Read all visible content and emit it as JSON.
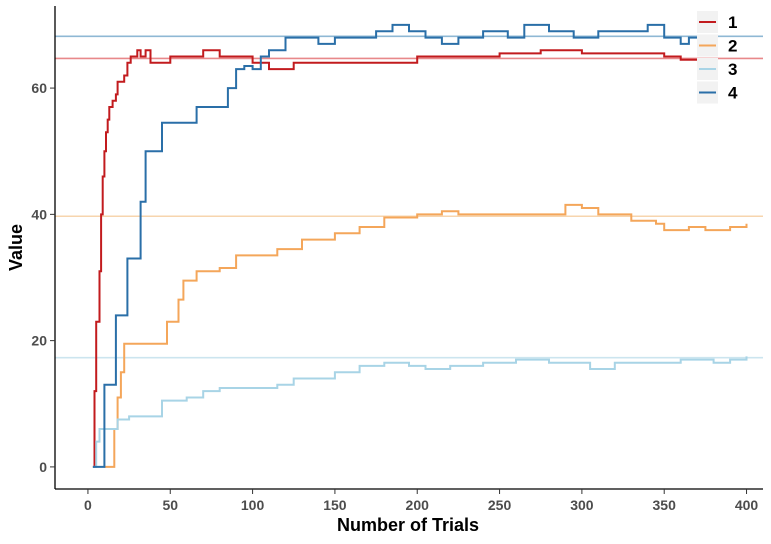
{
  "chart_data": {
    "type": "line",
    "xlabel": "Number of Trials",
    "ylabel": "Value",
    "xlim": [
      -20,
      410
    ],
    "ylim": [
      -3.5,
      73
    ],
    "x_ticks": [
      0,
      50,
      100,
      150,
      200,
      250,
      300,
      350,
      400
    ],
    "y_ticks": [
      0,
      20,
      40,
      60
    ],
    "grid": false,
    "legend_position": "top-right",
    "series": [
      {
        "name": "1",
        "color": "#c21b1e",
        "reference_value": 64.7,
        "reference_color": "#e8888a",
        "points": [
          [
            3,
            0
          ],
          [
            4,
            12
          ],
          [
            5,
            23
          ],
          [
            7,
            31
          ],
          [
            8,
            40
          ],
          [
            9,
            46
          ],
          [
            10,
            50
          ],
          [
            11,
            53
          ],
          [
            12,
            55
          ],
          [
            13,
            57
          ],
          [
            15,
            58
          ],
          [
            17,
            59
          ],
          [
            18,
            61
          ],
          [
            22,
            62
          ],
          [
            24,
            64
          ],
          [
            26,
            65
          ],
          [
            30,
            66
          ],
          [
            32,
            65
          ],
          [
            35,
            66
          ],
          [
            38,
            64
          ],
          [
            45,
            64
          ],
          [
            50,
            65
          ],
          [
            60,
            65
          ],
          [
            70,
            66
          ],
          [
            80,
            65
          ],
          [
            90,
            65
          ],
          [
            100,
            64
          ],
          [
            110,
            63
          ],
          [
            125,
            64
          ],
          [
            150,
            64
          ],
          [
            175,
            64
          ],
          [
            200,
            65
          ],
          [
            225,
            65
          ],
          [
            250,
            65.5
          ],
          [
            275,
            66
          ],
          [
            300,
            65.5
          ],
          [
            325,
            65.5
          ],
          [
            350,
            65
          ],
          [
            360,
            64.5
          ],
          [
            372,
            64.7
          ]
        ]
      },
      {
        "name": "2",
        "color": "#f4a65a",
        "reference_value": 39.7,
        "reference_color": "#f7d5ae",
        "points": [
          [
            10,
            0
          ],
          [
            15,
            0
          ],
          [
            16,
            6
          ],
          [
            18,
            11
          ],
          [
            20,
            15
          ],
          [
            22,
            19.5
          ],
          [
            25,
            19.5
          ],
          [
            30,
            19.5
          ],
          [
            35,
            19.5
          ],
          [
            40,
            19.5
          ],
          [
            48,
            23
          ],
          [
            55,
            26.5
          ],
          [
            58,
            29.5
          ],
          [
            66,
            31
          ],
          [
            80,
            31.5
          ],
          [
            90,
            33.5
          ],
          [
            100,
            33.5
          ],
          [
            115,
            34.5
          ],
          [
            130,
            36
          ],
          [
            150,
            37
          ],
          [
            165,
            38
          ],
          [
            180,
            39.5
          ],
          [
            200,
            40
          ],
          [
            215,
            40.5
          ],
          [
            225,
            40
          ],
          [
            250,
            40
          ],
          [
            270,
            40
          ],
          [
            290,
            41.5
          ],
          [
            300,
            41
          ],
          [
            310,
            40
          ],
          [
            330,
            39
          ],
          [
            345,
            38.5
          ],
          [
            350,
            37.5
          ],
          [
            365,
            38
          ],
          [
            375,
            37.5
          ],
          [
            390,
            38
          ],
          [
            400,
            38.5
          ]
        ]
      },
      {
        "name": "3",
        "color": "#a8d4e6",
        "reference_value": 17.3,
        "reference_color": "#cce5ef",
        "points": [
          [
            3,
            0
          ],
          [
            5,
            4
          ],
          [
            7,
            6
          ],
          [
            12,
            6
          ],
          [
            18,
            7.5
          ],
          [
            25,
            8
          ],
          [
            30,
            8
          ],
          [
            40,
            8
          ],
          [
            45,
            10.5
          ],
          [
            50,
            10.5
          ],
          [
            60,
            11
          ],
          [
            70,
            12
          ],
          [
            80,
            12.5
          ],
          [
            100,
            12.5
          ],
          [
            115,
            13
          ],
          [
            125,
            14
          ],
          [
            140,
            14
          ],
          [
            150,
            15
          ],
          [
            165,
            16
          ],
          [
            180,
            16.5
          ],
          [
            195,
            16
          ],
          [
            205,
            15.5
          ],
          [
            220,
            16
          ],
          [
            240,
            16.5
          ],
          [
            260,
            17
          ],
          [
            280,
            16.5
          ],
          [
            300,
            16.5
          ],
          [
            305,
            15.5
          ],
          [
            320,
            16.5
          ],
          [
            340,
            16.5
          ],
          [
            360,
            17
          ],
          [
            380,
            16.5
          ],
          [
            390,
            17
          ],
          [
            400,
            17.5
          ]
        ]
      },
      {
        "name": "4",
        "color": "#2a6fa8",
        "reference_value": 68.2,
        "reference_color": "#8fb8d4",
        "points": [
          [
            3,
            0
          ],
          [
            9,
            0
          ],
          [
            10,
            13
          ],
          [
            15,
            13
          ],
          [
            17,
            24
          ],
          [
            22,
            24
          ],
          [
            24,
            33
          ],
          [
            30,
            33
          ],
          [
            32,
            42
          ],
          [
            35,
            50
          ],
          [
            40,
            50
          ],
          [
            45,
            54.5
          ],
          [
            60,
            54.5
          ],
          [
            66,
            57
          ],
          [
            80,
            57
          ],
          [
            85,
            60
          ],
          [
            90,
            63
          ],
          [
            95,
            63.5
          ],
          [
            100,
            63
          ],
          [
            105,
            65
          ],
          [
            110,
            66
          ],
          [
            115,
            66
          ],
          [
            120,
            68
          ],
          [
            130,
            68
          ],
          [
            140,
            67
          ],
          [
            150,
            68
          ],
          [
            165,
            68
          ],
          [
            175,
            69
          ],
          [
            185,
            70
          ],
          [
            195,
            69
          ],
          [
            205,
            68
          ],
          [
            215,
            67
          ],
          [
            225,
            68
          ],
          [
            240,
            69
          ],
          [
            255,
            68
          ],
          [
            265,
            70
          ],
          [
            280,
            69
          ],
          [
            295,
            68
          ],
          [
            310,
            69
          ],
          [
            325,
            69
          ],
          [
            340,
            70
          ],
          [
            350,
            68
          ],
          [
            360,
            67
          ],
          [
            365,
            68
          ],
          [
            372,
            67.5
          ]
        ]
      }
    ]
  }
}
